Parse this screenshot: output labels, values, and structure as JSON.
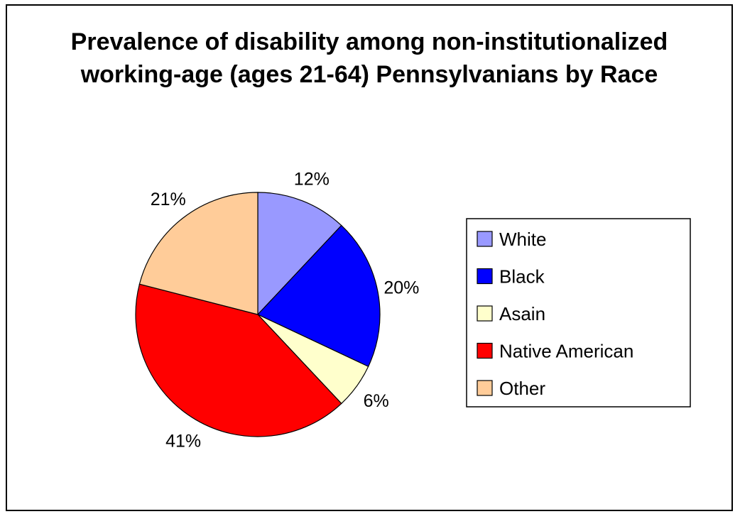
{
  "chart_data": {
    "type": "pie",
    "title": "Prevalence of disability among non-institutionalized working-age (ages 21-64) Pennsylvanians by Race",
    "categories": [
      "White",
      "Black",
      "Asain",
      "Native American",
      "Other"
    ],
    "values": [
      12,
      20,
      6,
      41,
      21
    ],
    "data_labels": [
      "12%",
      "20%",
      "6%",
      "41%",
      "21%"
    ],
    "colors": [
      "#9999ff",
      "#0000ff",
      "#ffffcc",
      "#ff0000",
      "#ffcc99"
    ],
    "legend_position": "right",
    "start_angle": "12 o'clock",
    "direction": "clockwise"
  }
}
